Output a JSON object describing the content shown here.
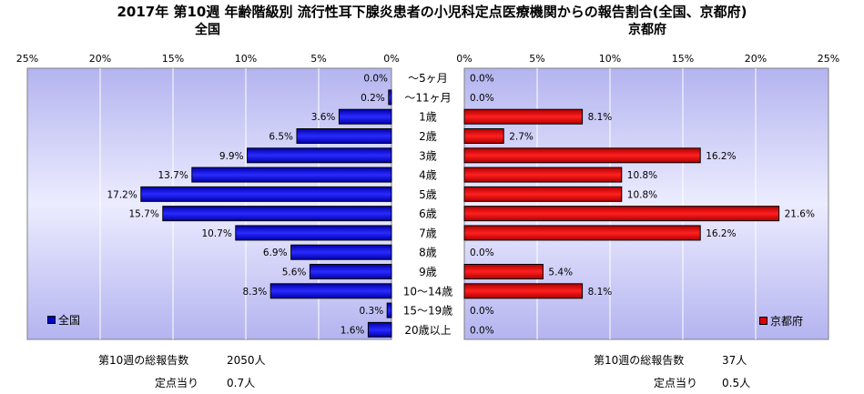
{
  "title": "2017年 第10週 年齢階級別 流行性耳下腺炎患者の小児科定点医療機関からの報告割合(全国、京都府)",
  "chart_data": [
    {
      "type": "bar",
      "orientation": "horizontal",
      "direction": "right-to-left",
      "title": "全国",
      "xlim": [
        0,
        25
      ],
      "tick_labels": [
        "25%",
        "20%",
        "15%",
        "10%",
        "5%",
        "0%"
      ],
      "categories": [
        "～5ヶ月",
        "～11ヶ月",
        "1歳",
        "2歳",
        "3歳",
        "4歳",
        "5歳",
        "6歳",
        "7歳",
        "8歳",
        "9歳",
        "10～14歳",
        "15～19歳",
        "20歳以上"
      ],
      "series": [
        {
          "name": "全国",
          "color": "#0000cc",
          "values": [
            0.0,
            0.2,
            3.6,
            6.5,
            9.9,
            13.7,
            17.2,
            15.7,
            10.7,
            6.9,
            5.6,
            8.3,
            0.3,
            1.6
          ],
          "labels": [
            "0.0%",
            "0.2%",
            "3.6%",
            "6.5%",
            "9.9%",
            "13.7%",
            "17.2%",
            "15.7%",
            "10.7%",
            "6.9%",
            "5.6%",
            "8.3%",
            "0.3%",
            "1.6%"
          ]
        }
      ],
      "legend_position": "bottom-left",
      "grid": true
    },
    {
      "type": "bar",
      "orientation": "horizontal",
      "title": "京都府",
      "xlim": [
        0,
        25
      ],
      "tick_labels": [
        "0%",
        "5%",
        "10%",
        "15%",
        "20%",
        "25%"
      ],
      "categories": [
        "～5ヶ月",
        "～11ヶ月",
        "1歳",
        "2歳",
        "3歳",
        "4歳",
        "5歳",
        "6歳",
        "7歳",
        "8歳",
        "9歳",
        "10～14歳",
        "15～19歳",
        "20歳以上"
      ],
      "series": [
        {
          "name": "京都府",
          "color": "#dd0000",
          "values": [
            0.0,
            0.0,
            8.1,
            2.7,
            16.2,
            10.8,
            10.8,
            21.6,
            16.2,
            0.0,
            5.4,
            8.1,
            0.0,
            0.0
          ],
          "labels": [
            "0.0%",
            "0.0%",
            "8.1%",
            "2.7%",
            "16.2%",
            "10.8%",
            "10.8%",
            "21.6%",
            "16.2%",
            "0.0%",
            "5.4%",
            "8.1%",
            "0.0%",
            "0.0%"
          ]
        }
      ],
      "legend_position": "bottom-right",
      "grid": true
    }
  ],
  "legend": {
    "left": "全国",
    "right": "京都府"
  },
  "footer": {
    "left_total_label": "第10週の総報告数",
    "left_total_value": "2050人",
    "left_per_label": "定点当り",
    "left_per_value": "0.7人",
    "right_total_label": "第10週の総報告数",
    "right_total_value": "37人",
    "right_per_label": "定点当り",
    "right_per_value": "0.5人"
  }
}
